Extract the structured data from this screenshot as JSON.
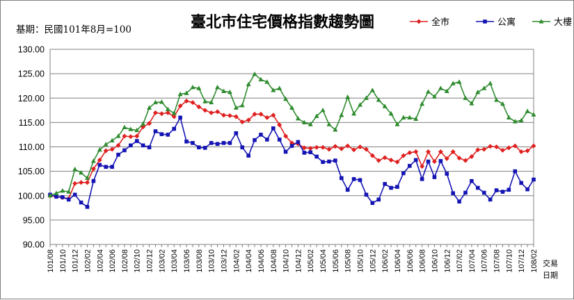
{
  "chart_data": {
    "type": "line",
    "title": "臺北市住宅價格指數趨勢圖",
    "subtitle": "基期：民國101年8月=100",
    "xlabel": "交易日期",
    "xlabel_lines": [
      "交易",
      "日期"
    ],
    "ylabel": "",
    "ylim": [
      90,
      130
    ],
    "yticks": [
      "130.00",
      "125.00",
      "120.00",
      "115.00",
      "110.00",
      "105.00",
      "100.00",
      "95.00",
      "90.00"
    ],
    "grid": "horizontal",
    "legend_position": "top-right",
    "categories": [
      "101/08",
      "101/09",
      "101/10",
      "101/11",
      "101/12",
      "102/01",
      "102/02",
      "102/03",
      "102/04",
      "102/05",
      "102/06",
      "102/07",
      "102/08",
      "102/09",
      "102/10",
      "102/11",
      "102/12",
      "103/01",
      "103/02",
      "103/03",
      "103/04",
      "103/05",
      "103/06",
      "103/07",
      "103/08",
      "103/09",
      "103/10",
      "103/11",
      "103/12",
      "104/01",
      "104/02",
      "104/03",
      "104/04",
      "104/05",
      "104/06",
      "104/07",
      "104/08",
      "104/09",
      "104/10",
      "104/11",
      "104/12",
      "105/01",
      "105/02",
      "105/03",
      "105/04",
      "105/05",
      "105/06",
      "105/07",
      "105/08",
      "105/09",
      "105/10",
      "105/11",
      "105/12",
      "106/01",
      "106/02",
      "106/03",
      "106/04",
      "106/05",
      "106/06",
      "106/07",
      "106/08",
      "106/09",
      "106/10",
      "106/11",
      "106/12",
      "107/01",
      "107/02",
      "107/03",
      "107/04",
      "107/05",
      "107/06",
      "107/07",
      "107/08",
      "107/09",
      "107/10",
      "107/11",
      "107/12",
      "108/01",
      "108/02"
    ],
    "tick_labels": [
      "101/08",
      "101/10",
      "101/12",
      "102/02",
      "102/04",
      "102/06",
      "102/08",
      "102/10",
      "102/12",
      "103/02",
      "103/04",
      "103/06",
      "103/08",
      "103/10",
      "103/12",
      "104/02",
      "104/04",
      "104/06",
      "104/08",
      "104/10",
      "104/12",
      "105/02",
      "105/04",
      "105/06",
      "105/08",
      "105/10",
      "105/12",
      "106/02",
      "106/04",
      "106/06",
      "106/08",
      "106/10",
      "106/12",
      "107/02",
      "107/04",
      "107/06",
      "107/08",
      "107/10",
      "107/12",
      "108/02"
    ],
    "series": [
      {
        "name": "全市",
        "color": "#e02020",
        "marker": "diamond",
        "values": [
          100.0,
          99.8,
          99.6,
          99.4,
          102.5,
          102.7,
          102.7,
          105.5,
          107.3,
          109.2,
          109.5,
          110.3,
          112.2,
          112.1,
          112.2,
          114.1,
          114.8,
          117.0,
          116.8,
          117.0,
          116.2,
          118.4,
          119.4,
          119.1,
          118.2,
          117.5,
          117.0,
          117.2,
          116.5,
          116.4,
          116.2,
          115.1,
          115.5,
          116.7,
          116.7,
          116.0,
          116.5,
          114.5,
          112.2,
          110.8,
          110.6,
          109.8,
          109.7,
          109.9,
          109.9,
          109.5,
          110.1,
          109.6,
          110.2,
          109.4,
          110.0,
          109.5,
          108.2,
          107.2,
          107.8,
          107.3,
          106.9,
          108.2,
          108.8,
          109.0,
          106.0,
          109.0,
          107.0,
          109.0,
          107.6,
          109.0,
          107.7,
          107.2,
          108.0,
          109.4,
          109.5,
          110.1,
          110.0,
          109.3,
          109.8,
          110.2,
          109.0,
          109.2,
          110.2
        ]
      },
      {
        "name": "公寓",
        "color": "#1414b4",
        "marker": "square",
        "values": [
          100.2,
          99.8,
          99.7,
          99.2,
          100.2,
          98.6,
          97.7,
          103.0,
          106.3,
          105.9,
          105.9,
          108.4,
          109.3,
          110.3,
          111.2,
          110.3,
          109.9,
          113.2,
          112.6,
          112.5,
          113.7,
          116.0,
          111.1,
          110.8,
          109.9,
          109.8,
          110.8,
          110.6,
          110.8,
          110.8,
          112.8,
          109.9,
          108.2,
          111.4,
          112.5,
          111.5,
          113.8,
          111.5,
          109.0,
          110.2,
          111.0,
          108.8,
          108.9,
          108.0,
          106.9,
          107.0,
          107.2,
          103.6,
          101.2,
          103.4,
          103.2,
          100.2,
          98.5,
          99.2,
          102.4,
          101.6,
          101.8,
          104.6,
          106.1,
          107.3,
          103.4,
          107.0,
          103.8,
          107.1,
          104.5,
          100.5,
          98.8,
          100.6,
          103.0,
          101.6,
          100.6,
          99.2,
          101.1,
          100.8,
          101.2,
          105.0,
          102.6,
          101.3,
          103.3
        ]
      },
      {
        "name": "大樓",
        "color": "#2e8b2e",
        "marker": "triangle",
        "values": [
          100.0,
          100.5,
          101.0,
          100.8,
          105.4,
          104.7,
          103.6,
          107.1,
          109.4,
          110.5,
          111.3,
          112.2,
          114.0,
          113.6,
          113.4,
          114.7,
          118.0,
          119.1,
          119.2,
          117.7,
          116.9,
          120.8,
          121.0,
          122.2,
          122.0,
          119.3,
          119.1,
          122.2,
          121.4,
          121.2,
          118.0,
          118.5,
          122.8,
          124.9,
          123.8,
          123.3,
          121.6,
          122.0,
          119.8,
          118.0,
          115.8,
          115.0,
          114.6,
          116.3,
          117.5,
          114.6,
          113.5,
          116.5,
          120.2,
          116.8,
          118.6,
          120.0,
          121.6,
          119.6,
          118.3,
          116.8,
          114.6,
          116.0,
          116.0,
          115.7,
          118.8,
          121.3,
          120.3,
          122.0,
          121.4,
          123.0,
          123.3,
          120.0,
          118.9,
          121.2,
          122.0,
          123.0,
          119.6,
          118.8,
          116.0,
          115.2,
          115.4,
          117.3,
          116.6
        ]
      }
    ]
  }
}
